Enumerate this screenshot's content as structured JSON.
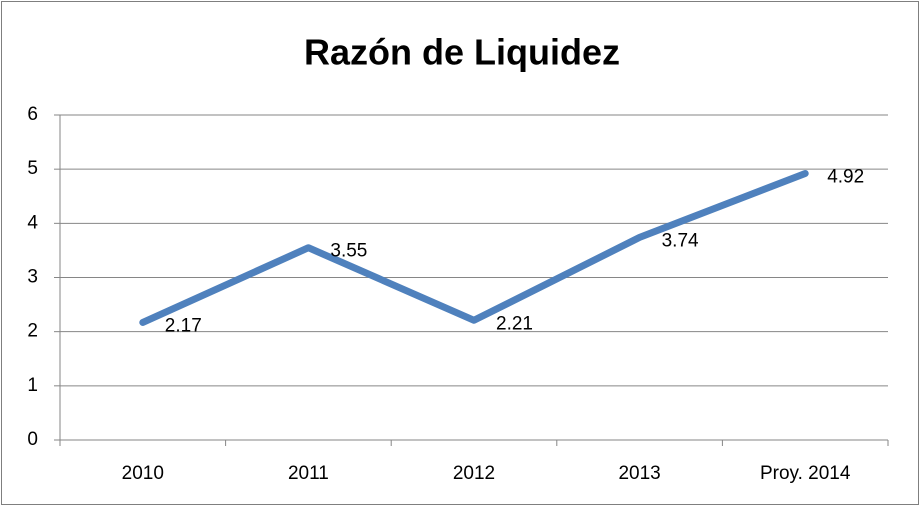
{
  "chart_data": {
    "type": "line",
    "title": "Razón de Liquidez",
    "categories": [
      "2010",
      "2011",
      "2012",
      "2013",
      "Proy. 2014"
    ],
    "series": [
      {
        "name": "Razón de Liquidez",
        "color": "#4f81bd",
        "values": [
          2.17,
          3.55,
          2.21,
          3.74,
          4.92
        ]
      }
    ],
    "ylim": [
      0,
      6
    ],
    "yticks": [
      0,
      1,
      2,
      3,
      4,
      5,
      6
    ],
    "grid": true
  }
}
